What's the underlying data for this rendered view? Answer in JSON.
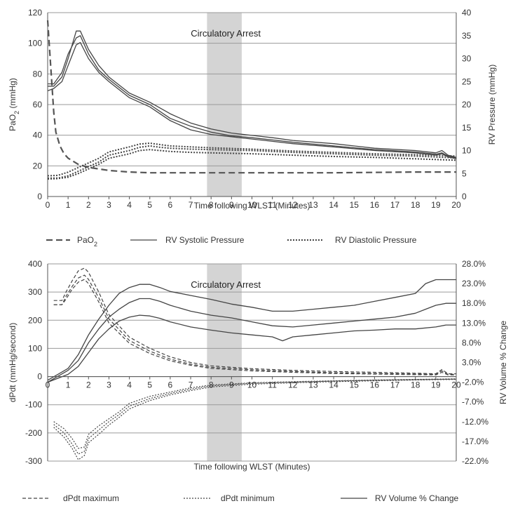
{
  "chart_data": [
    {
      "type": "line",
      "annotation": "Circulatory Arrest",
      "shaded_region": [
        7.8,
        9.5
      ],
      "xlabel": "Time following WLST (Minutes)",
      "ylabel_left_main": "PaO",
      "ylabel_left_sub": "2",
      "ylabel_left_unit": " (mmHg)",
      "ylabel_right": "RV Pressure (mmHg)",
      "xlim": [
        0,
        20
      ],
      "xticks": [
        0,
        1,
        2,
        3,
        4,
        5,
        6,
        7,
        8,
        9,
        10,
        11,
        12,
        13,
        14,
        15,
        16,
        17,
        18,
        19,
        20
      ],
      "ylim_left": [
        0,
        120
      ],
      "yticks_left": [
        0,
        20,
        40,
        60,
        80,
        100,
        120
      ],
      "ylim_right": [
        0,
        40
      ],
      "yticks_right": [
        0,
        5,
        10,
        15,
        20,
        25,
        30,
        35,
        40
      ],
      "grid": true,
      "legend": {
        "placement": "bottom",
        "items": [
          {
            "main": "PaO",
            "sub": "2",
            "style": "dashed-long"
          },
          {
            "main": "RV Systolic Pressure",
            "sub": "",
            "style": "solid"
          },
          {
            "main": "RV Diastolic Pressure",
            "sub": "",
            "style": "dotted-bold"
          }
        ]
      },
      "series": [
        {
          "axis": "left",
          "style": "dashed-long",
          "x": [
            0,
            0.1,
            0.2,
            0.3,
            0.4,
            0.6,
            0.8,
            1.0,
            1.5,
            2.0,
            3.0,
            4.0,
            5.0,
            6.0,
            8.0,
            10.0,
            14.0,
            18.0,
            20.0
          ],
          "y": [
            115,
            95,
            75,
            55,
            42,
            33,
            28,
            25,
            21,
            19,
            17,
            16,
            15.5,
            15.5,
            15.5,
            15.5,
            15.5,
            16,
            16
          ]
        },
        {
          "axis": "right",
          "style": "solid",
          "x": [
            0,
            0.3,
            0.7,
            1.0,
            1.4,
            1.6,
            2.0,
            2.5,
            3.0,
            4.0,
            5.0,
            6.0,
            7.0,
            8.0,
            9.0,
            10.0,
            11.0,
            12.0,
            14.0,
            16.0,
            18.0,
            19.0,
            19.3,
            19.6,
            20.0
          ],
          "y": [
            24,
            24,
            26,
            30,
            36,
            36,
            32,
            28.5,
            26,
            22.5,
            20.5,
            18,
            16,
            14.7,
            13.8,
            13.3,
            12.8,
            12.2,
            11.5,
            10.5,
            10,
            9.5,
            10,
            9,
            8.5
          ]
        },
        {
          "axis": "right",
          "style": "solid",
          "x": [
            0,
            0.3,
            0.7,
            1.0,
            1.4,
            1.6,
            2.0,
            2.5,
            3.0,
            4.0,
            5.0,
            6.0,
            7.0,
            8.0,
            9.0,
            10.0,
            11.0,
            12.0,
            14.0,
            16.0,
            18.0,
            19.0,
            19.3,
            19.6,
            20.0
          ],
          "y": [
            23,
            23.5,
            25,
            28.5,
            33,
            33.5,
            30,
            27,
            25,
            21.5,
            19.5,
            16.5,
            14.5,
            13.5,
            13,
            12.5,
            12,
            11.5,
            10.8,
            10,
            9.5,
            9,
            9.3,
            8.6,
            8.2
          ]
        },
        {
          "axis": "right",
          "style": "solid",
          "x": [
            0,
            0.3,
            0.7,
            1.0,
            1.4,
            1.6,
            2.0,
            2.5,
            3.0,
            4.0,
            5.0,
            6.0,
            7.0,
            8.0,
            9.0,
            10.0,
            11.0,
            12.0,
            14.0,
            16.0,
            18.0,
            19.0,
            19.3,
            19.6,
            20.0
          ],
          "y": [
            24.5,
            24.5,
            27,
            31,
            34.5,
            35,
            31,
            27.5,
            25.5,
            22,
            20,
            17,
            15.3,
            14,
            13.2,
            12.8,
            12.3,
            11.8,
            11,
            10.2,
            9.7,
            9.2,
            9.5,
            8.8,
            8.4
          ]
        },
        {
          "axis": "right",
          "style": "dotted-bold",
          "x": [
            0,
            0.5,
            1.0,
            1.5,
            2.0,
            2.5,
            3.0,
            4.0,
            4.5,
            5.0,
            5.5,
            6.0,
            7.0,
            8.0,
            10.0,
            12.0,
            14.0,
            16.0,
            18.0,
            20.0
          ],
          "y": [
            4,
            4,
            4.5,
            5.5,
            6.5,
            7.5,
            9,
            10,
            10.7,
            11,
            10.7,
            10.5,
            10.3,
            10.2,
            10,
            9.6,
            9.3,
            9,
            8.8,
            8.4
          ]
        },
        {
          "axis": "right",
          "style": "dotted-bold",
          "x": [
            0,
            0.5,
            1.0,
            1.5,
            2.0,
            2.5,
            3.0,
            4.0,
            4.5,
            5.0,
            5.5,
            6.0,
            7.0,
            8.0,
            10.0,
            12.0,
            14.0,
            16.0,
            18.0,
            20.0
          ],
          "y": [
            4.5,
            4.6,
            5.3,
            6.3,
            7.3,
            8.3,
            9.7,
            10.8,
            11.4,
            11.6,
            11.3,
            11,
            10.8,
            10.6,
            10.3,
            9.9,
            9.6,
            9.3,
            9.1,
            8.8
          ]
        },
        {
          "axis": "right",
          "style": "dotted-bold",
          "x": [
            0,
            0.5,
            1.0,
            1.5,
            2.0,
            2.5,
            3.0,
            4.0,
            4.5,
            5.0,
            5.5,
            6.0,
            7.0,
            8.0,
            10.0,
            12.0,
            14.0,
            16.0,
            18.0,
            20.0
          ],
          "y": [
            3.8,
            3.9,
            4.2,
            5,
            6,
            7,
            8.3,
            9.3,
            10,
            10.2,
            10,
            9.8,
            9.6,
            9.5,
            9.3,
            9,
            8.7,
            8.5,
            8.2,
            7.9
          ]
        }
      ]
    },
    {
      "type": "line",
      "annotation": "Circulatory Arrest",
      "shaded_region": [
        7.8,
        9.5
      ],
      "xlabel": "Time following WLST (Minutes)",
      "ylabel_left": "dPdt (mmHg/second)",
      "ylabel_right": "RV Volume % Change",
      "xlim": [
        0,
        20
      ],
      "xticks": [
        0,
        1,
        2,
        3,
        4,
        5,
        6,
        7,
        8,
        9,
        10,
        11,
        12,
        13,
        14,
        15,
        16,
        17,
        18,
        19,
        20
      ],
      "ylim_left": [
        -300,
        400
      ],
      "yticks_left": [
        -300,
        -200,
        -100,
        0,
        100,
        200,
        300,
        400
      ],
      "ylim_right": [
        -22,
        28
      ],
      "yticks_right": [
        -22,
        -17,
        -12,
        -7,
        -2,
        3,
        8,
        13,
        18,
        23,
        28
      ],
      "yticklabels_right": [
        "-22.0%",
        "-17.0%",
        "-12.0%",
        "-7.0%",
        "-2.0%",
        "3.0%",
        "8.0%",
        "13.0%",
        "18.0%",
        "23.0%",
        "28.0%"
      ],
      "grid": true,
      "legend": {
        "placement": "bottom",
        "items": [
          {
            "label": "dPdt maximum",
            "style": "dashed"
          },
          {
            "label": "dPdt minimum",
            "style": "dotted"
          },
          {
            "label": "RV Volume % Change",
            "style": "solid"
          }
        ]
      },
      "series": [
        {
          "axis": "left",
          "style": "dashed",
          "x": [
            0.3,
            0.7,
            0.9,
            1.2,
            1.5,
            1.8,
            2.0,
            2.5,
            3.0,
            4.0,
            5.0,
            6.0,
            7.0,
            8.0,
            10.0,
            12.0,
            14.0,
            16.0,
            18.0,
            19.0,
            19.3,
            19.6,
            20.0
          ],
          "y": [
            270,
            270,
            300,
            340,
            375,
            385,
            370,
            300,
            220,
            140,
            100,
            70,
            50,
            38,
            28,
            22,
            18,
            15,
            12,
            10,
            25,
            10,
            10
          ]
        },
        {
          "axis": "left",
          "style": "dashed",
          "x": [
            0.3,
            0.7,
            0.9,
            1.2,
            1.5,
            1.8,
            2.0,
            2.5,
            3.0,
            4.0,
            5.0,
            6.0,
            7.0,
            8.0,
            10.0,
            12.0,
            14.0,
            16.0,
            18.0,
            19.0,
            19.3,
            19.6,
            20.0
          ],
          "y": [
            255,
            255,
            285,
            320,
            350,
            360,
            345,
            280,
            205,
            128,
            90,
            62,
            44,
            33,
            24,
            18,
            14,
            11,
            9,
            8,
            20,
            8,
            8
          ]
        },
        {
          "axis": "left",
          "style": "dashed",
          "x": [
            0.3,
            0.7,
            0.9,
            1.2,
            1.5,
            1.8,
            2.0,
            2.5,
            3.0,
            4.0,
            5.0,
            6.0,
            7.0,
            8.0,
            10.0,
            12.0,
            14.0,
            16.0,
            18.0,
            19.0,
            19.3,
            19.6,
            20.0
          ],
          "y": [
            255,
            255,
            275,
            310,
            335,
            345,
            330,
            265,
            190,
            118,
            82,
            56,
            40,
            29,
            20,
            15,
            11,
            9,
            7,
            6,
            15,
            6,
            6
          ]
        },
        {
          "axis": "left",
          "style": "dotted",
          "x": [
            0.3,
            0.8,
            1.2,
            1.5,
            1.8,
            2.0,
            2.5,
            3.0,
            3.5,
            4.0,
            5.0,
            6.0,
            7.0,
            8.0,
            10.0,
            12.0,
            14.0,
            16.0,
            18.0,
            20.0
          ],
          "y": [
            -160,
            -185,
            -220,
            -255,
            -250,
            -205,
            -175,
            -150,
            -125,
            -95,
            -70,
            -55,
            -40,
            -30,
            -22,
            -18,
            -15,
            -12,
            -10,
            -8
          ]
        },
        {
          "axis": "left",
          "style": "dotted",
          "x": [
            0.3,
            0.8,
            1.2,
            1.5,
            1.8,
            2.0,
            2.5,
            3.0,
            3.5,
            4.0,
            5.0,
            6.0,
            7.0,
            8.0,
            10.0,
            12.0,
            14.0,
            16.0,
            18.0,
            20.0
          ],
          "y": [
            -170,
            -200,
            -240,
            -275,
            -265,
            -220,
            -190,
            -160,
            -135,
            -105,
            -78,
            -60,
            -45,
            -33,
            -24,
            -20,
            -16,
            -13,
            -11,
            -9
          ]
        },
        {
          "axis": "left",
          "style": "dotted",
          "x": [
            0.3,
            0.8,
            1.2,
            1.5,
            1.8,
            2.0,
            2.5,
            3.0,
            3.5,
            4.0,
            5.0,
            6.0,
            7.0,
            8.0,
            10.0,
            12.0,
            14.0,
            16.0,
            18.0,
            20.0
          ],
          "y": [
            -180,
            -215,
            -255,
            -295,
            -280,
            -235,
            -205,
            -172,
            -145,
            -115,
            -85,
            -65,
            -50,
            -37,
            -27,
            -22,
            -18,
            -15,
            -12,
            -10
          ]
        },
        {
          "axis": "right",
          "style": "solid",
          "x": [
            0,
            0.5,
            1.0,
            1.5,
            2.0,
            2.5,
            3.0,
            3.5,
            4.0,
            4.5,
            5.0,
            5.5,
            6.0,
            7.0,
            8.0,
            9.0,
            10.0,
            11.0,
            12.0,
            13.0,
            14.0,
            15.0,
            16.0,
            17.0,
            18.0,
            18.5,
            19.0,
            19.5,
            20.0
          ],
          "y": [
            -1.5,
            0,
            1.5,
            5,
            10,
            14,
            17.5,
            20.5,
            22,
            22.8,
            22.8,
            22,
            21,
            20,
            19,
            17.8,
            17,
            16,
            16,
            16.5,
            17,
            17.5,
            18.5,
            19.5,
            20.5,
            23,
            24,
            24,
            24
          ]
        },
        {
          "axis": "right",
          "style": "solid",
          "x": [
            0,
            0.5,
            1.0,
            1.5,
            2.0,
            2.5,
            3.0,
            3.5,
            4.0,
            4.5,
            5.0,
            5.5,
            6.0,
            7.0,
            8.0,
            9.0,
            10.0,
            11.0,
            12.0,
            13.0,
            14.0,
            15.0,
            16.0,
            17.0,
            18.0,
            18.5,
            19.0,
            19.5,
            20.0
          ],
          "y": [
            -2,
            -0.5,
            1,
            3.5,
            8,
            11.5,
            14.5,
            16.5,
            18.2,
            19.2,
            19.2,
            18.5,
            17.5,
            16,
            15,
            14.3,
            13.3,
            12.3,
            12,
            12.5,
            13,
            13.5,
            14,
            14.5,
            15.5,
            16.5,
            17.5,
            18,
            18
          ]
        },
        {
          "axis": "right",
          "style": "solid",
          "x": [
            0,
            0.5,
            1.0,
            1.5,
            2.0,
            2.5,
            3.0,
            3.5,
            4.0,
            4.5,
            5.0,
            5.5,
            6.0,
            7.0,
            8.0,
            9.0,
            10.0,
            11.0,
            11.5,
            12.0,
            13.0,
            14.0,
            15.0,
            16.0,
            17.0,
            18.0,
            19.0,
            19.5,
            20.0
          ],
          "y": [
            -2,
            -1,
            0,
            2,
            5.5,
            9,
            11.5,
            13.5,
            14.5,
            15,
            14.8,
            14.2,
            13.3,
            12,
            11.2,
            10.5,
            10,
            9.5,
            8.5,
            9.5,
            10,
            10.5,
            11,
            11.2,
            11.5,
            11.5,
            12,
            12.5,
            12.5
          ]
        }
      ]
    }
  ]
}
